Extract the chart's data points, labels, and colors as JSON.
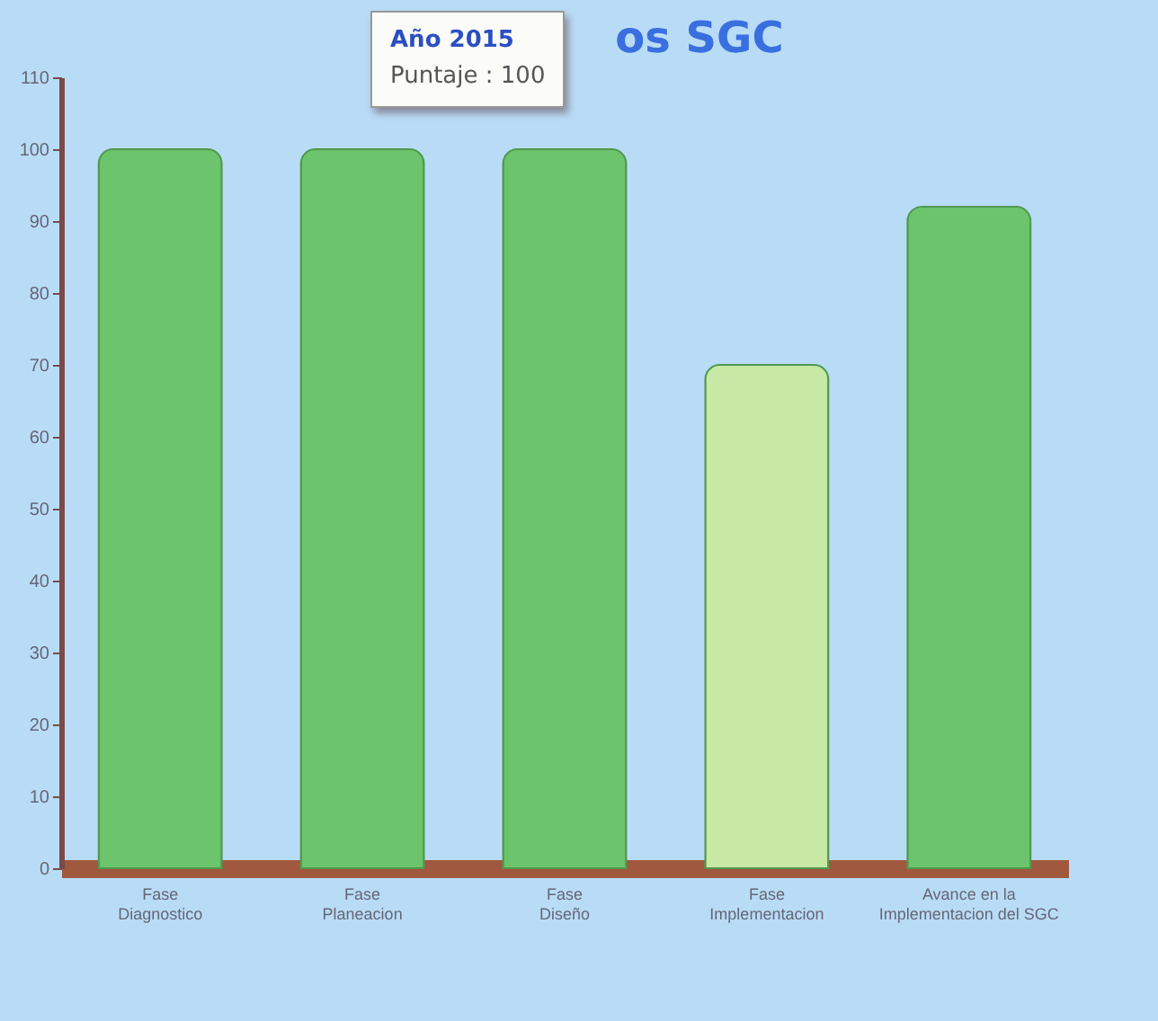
{
  "chart_data": {
    "type": "bar",
    "title": "os SGC",
    "annotations": [
      "Año 2015",
      "Puntaje : 100"
    ],
    "categories": [
      "Fase\nDiagnostico",
      "Fase\nPlaneacion",
      "Fase\nDiseño",
      "Fase\nImplementacion",
      "Avance en la\nImplementacion del SGC"
    ],
    "values": [
      100,
      100,
      100,
      70,
      92
    ],
    "colors": [
      "#6cc46c",
      "#6cc46c",
      "#6cc46c",
      "#c8e8a6",
      "#6cc46c"
    ],
    "ylim": [
      0,
      110
    ],
    "yticks": [
      0,
      10,
      20,
      30,
      40,
      50,
      60,
      70,
      80,
      90,
      100,
      110
    ]
  }
}
